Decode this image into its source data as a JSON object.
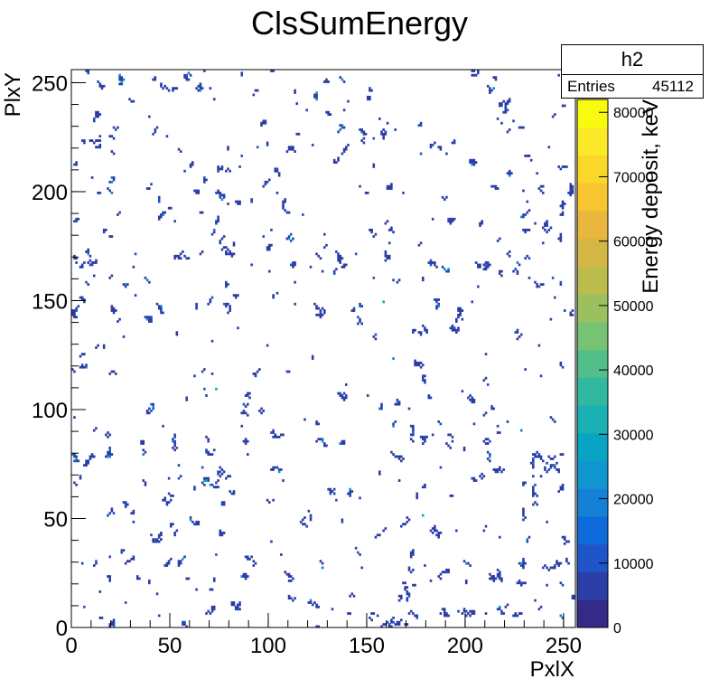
{
  "chart_data": {
    "type": "heatmap",
    "title": "ClsSumEnergy",
    "xlabel": "PxlX",
    "ylabel": "PlxY",
    "zlabel": "Energy deposit, keV",
    "xlim": [
      0,
      256
    ],
    "ylim": [
      0,
      256
    ],
    "zlim": [
      0,
      82000
    ],
    "x_ticks": [
      0,
      50,
      100,
      150,
      200,
      250
    ],
    "y_ticks": [
      0,
      50,
      100,
      150,
      200,
      250
    ],
    "z_ticks": [
      0,
      10000,
      20000,
      30000,
      40000,
      50000,
      60000,
      70000,
      80000
    ],
    "grid": false,
    "palette": [
      "#352a87",
      "#2b3ea6",
      "#1f55c8",
      "#0f6bdb",
      "#1481d6",
      "#0f95cf",
      "#09a4c4",
      "#1ab0b4",
      "#31b8a1",
      "#52bf8b",
      "#78c274",
      "#9cc05e",
      "#bbbc4c",
      "#d3b645",
      "#e9b73e",
      "#f8c42f",
      "#f9d82a",
      "#f9e926",
      "#f9fb0e"
    ],
    "cells_note_color": "#2b3ea6",
    "stats": {
      "name": "h2",
      "entries_label": "Entries",
      "entries_value": "45112"
    }
  }
}
